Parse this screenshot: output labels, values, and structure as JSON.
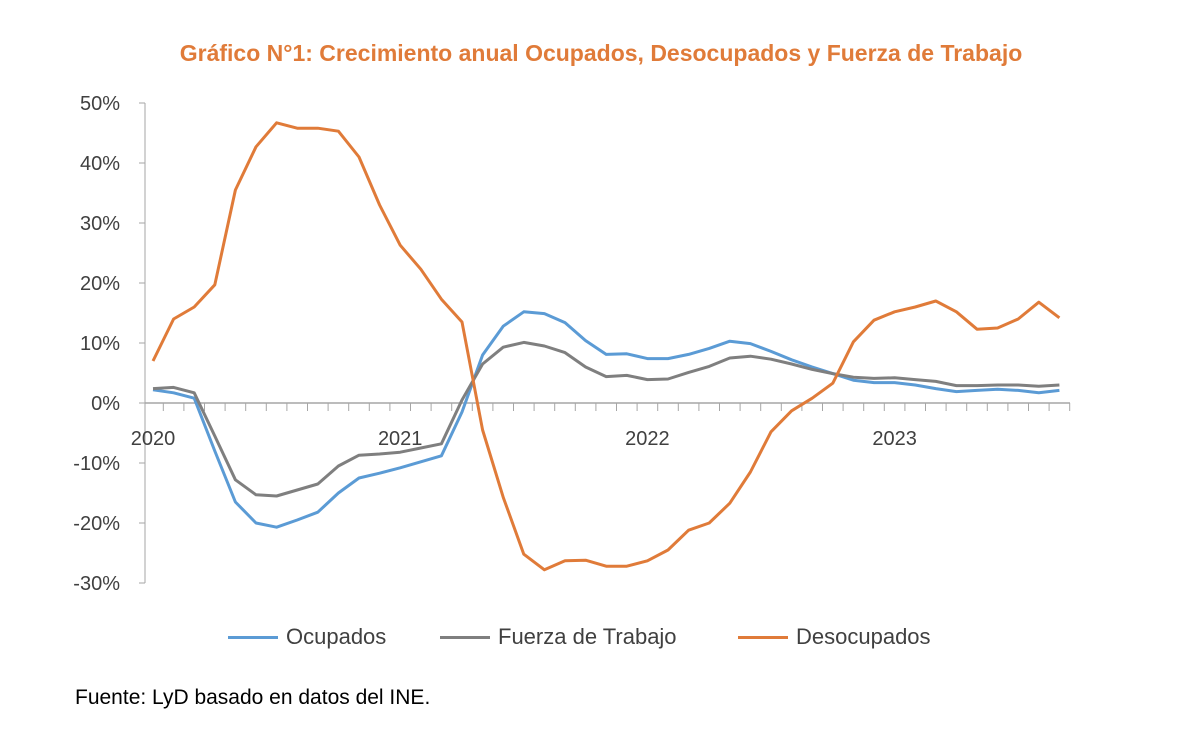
{
  "chart_data": {
    "type": "line",
    "title": "Gráfico N°1: Crecimiento anual Ocupados, Desocupados y Fuerza de Trabajo",
    "xlabel": "",
    "ylabel": "",
    "x_start": "2020-01",
    "x_end": "2023-09",
    "x_frequency": "monthly",
    "x_tick_labels": [
      "2020",
      "2021",
      "2022",
      "2023"
    ],
    "y_tick_labels": [
      "50%",
      "40%",
      "30%",
      "20%",
      "10%",
      "0%",
      "-10%",
      "-20%",
      "-30%"
    ],
    "ylim": [
      -30,
      50
    ],
    "grid": false,
    "legend": "bottom",
    "series": [
      {
        "name": "Ocupados",
        "color": "#5B9BD5",
        "values": [
          2.2,
          1.7,
          0.8,
          -8,
          -16.5,
          -20,
          -20.7,
          -19.5,
          -18.2,
          -15,
          -12.5,
          -11.7,
          -10.8,
          -9.8,
          -8.8,
          -1.5,
          8,
          12.8,
          15.2,
          14.9,
          13.4,
          10.4,
          8.1,
          8.2,
          7.4,
          7.4,
          8.1,
          9.1,
          10.3,
          9.9,
          8.6,
          7.2,
          6,
          4.9,
          3.8,
          3.4,
          3.4,
          3,
          2.4,
          1.9,
          2.1,
          2.3,
          2.1,
          1.7,
          2.1
        ]
      },
      {
        "name": "Fuerza de Trabajo",
        "color": "#7F7F7F",
        "values": [
          2.4,
          2.6,
          1.7,
          -5.5,
          -12.8,
          -15.3,
          -15.5,
          -14.5,
          -13.5,
          -10.5,
          -8.7,
          -8.5,
          -8.2,
          -7.5,
          -6.8,
          0.5,
          6.5,
          9.3,
          10.1,
          9.5,
          8.4,
          6,
          4.4,
          4.6,
          3.9,
          4,
          5.1,
          6.1,
          7.5,
          7.8,
          7.3,
          6.5,
          5.6,
          4.9,
          4.3,
          4.1,
          4.2,
          3.9,
          3.6,
          2.9,
          2.9,
          3,
          3,
          2.8,
          3
        ]
      },
      {
        "name": "Desocupados",
        "color": "#E07B39",
        "values": [
          7,
          14,
          16,
          19.7,
          35.5,
          42.7,
          46.7,
          45.8,
          45.8,
          45.3,
          41,
          33,
          26.3,
          22.3,
          17.3,
          13.5,
          -4.5,
          -15.7,
          -25.2,
          -27.8,
          -26.3,
          -26.2,
          -27.2,
          -27.2,
          -26.3,
          -24.5,
          -21.2,
          -20,
          -16.7,
          -11.5,
          -4.8,
          -1.3,
          0.8,
          3.3,
          10.2,
          13.8,
          15.2,
          16,
          17,
          15.2,
          12.3,
          12.5,
          14,
          16.8,
          14.2
        ]
      }
    ]
  },
  "source": "Fuente: LyD basado en datos del INE."
}
